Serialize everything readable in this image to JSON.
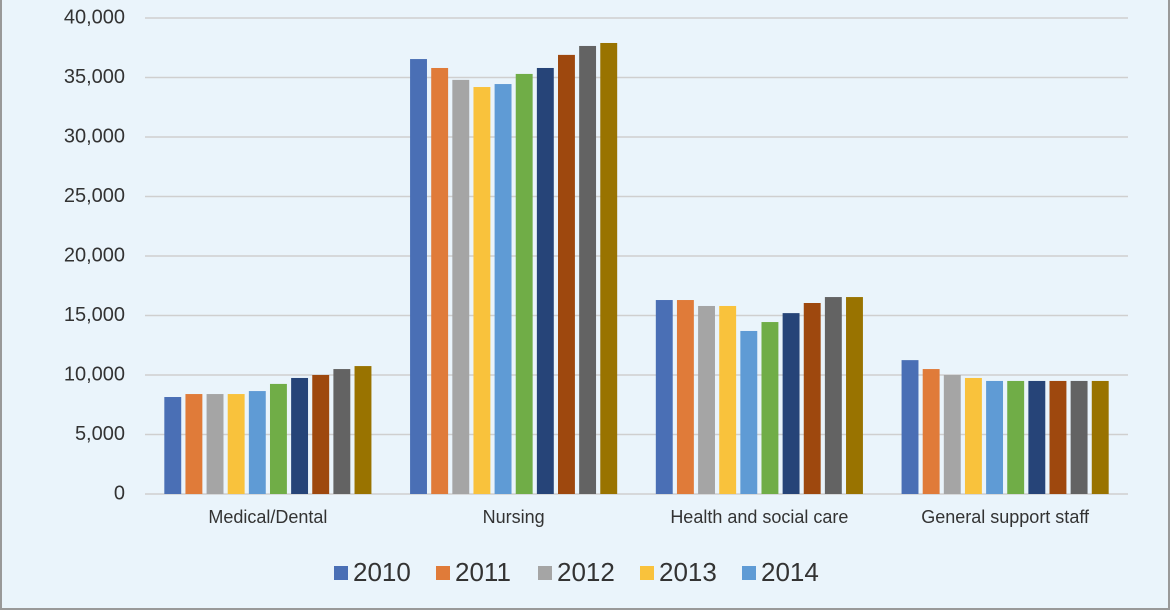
{
  "chart_data": {
    "type": "bar",
    "categories": [
      "Medical/Dental",
      "Nursing",
      "Health and social care",
      "General support staff"
    ],
    "series": [
      {
        "name": "2010",
        "color": "#4a6fb5",
        "values": [
          8150,
          36550,
          16300,
          11250
        ]
      },
      {
        "name": "2011",
        "color": "#e07b39",
        "values": [
          8400,
          35800,
          16300,
          10500
        ]
      },
      {
        "name": "2012",
        "color": "#a5a5a5",
        "values": [
          8400,
          34800,
          15800,
          10000
        ]
      },
      {
        "name": "2013",
        "color": "#f9c23c",
        "values": [
          8400,
          34200,
          15800,
          9750
        ]
      },
      {
        "name": "2014",
        "color": "#5f9bd5",
        "values": [
          8650,
          34450,
          13700,
          9500
        ]
      },
      {
        "color": "#70ad47",
        "values": [
          9250,
          35300,
          14450,
          9500
        ]
      },
      {
        "color": "#264478",
        "values": [
          9750,
          35800,
          15200,
          9500
        ]
      },
      {
        "color": "#9e480e",
        "values": [
          10000,
          36900,
          16050,
          9500
        ]
      },
      {
        "color": "#636363",
        "values": [
          10500,
          37650,
          16550,
          9500
        ]
      },
      {
        "color": "#997300",
        "values": [
          10750,
          37900,
          16550,
          9500
        ]
      }
    ],
    "ylim": [
      0,
      40000
    ],
    "yticks": [
      0,
      {
        "value": 5000,
        "label": "5,000"
      },
      {
        "value": 10000,
        "label": "10,000"
      },
      {
        "value": 15000,
        "label": "15,000"
      },
      {
        "value": 20000,
        "label": "20,000"
      },
      {
        "value": 25000,
        "label": "25,000"
      },
      {
        "value": 30000,
        "label": "30,000"
      },
      {
        "value": 35000,
        "label": "35,000"
      },
      {
        "value": 40000,
        "label": "40,000"
      }
    ],
    "grid": true
  }
}
